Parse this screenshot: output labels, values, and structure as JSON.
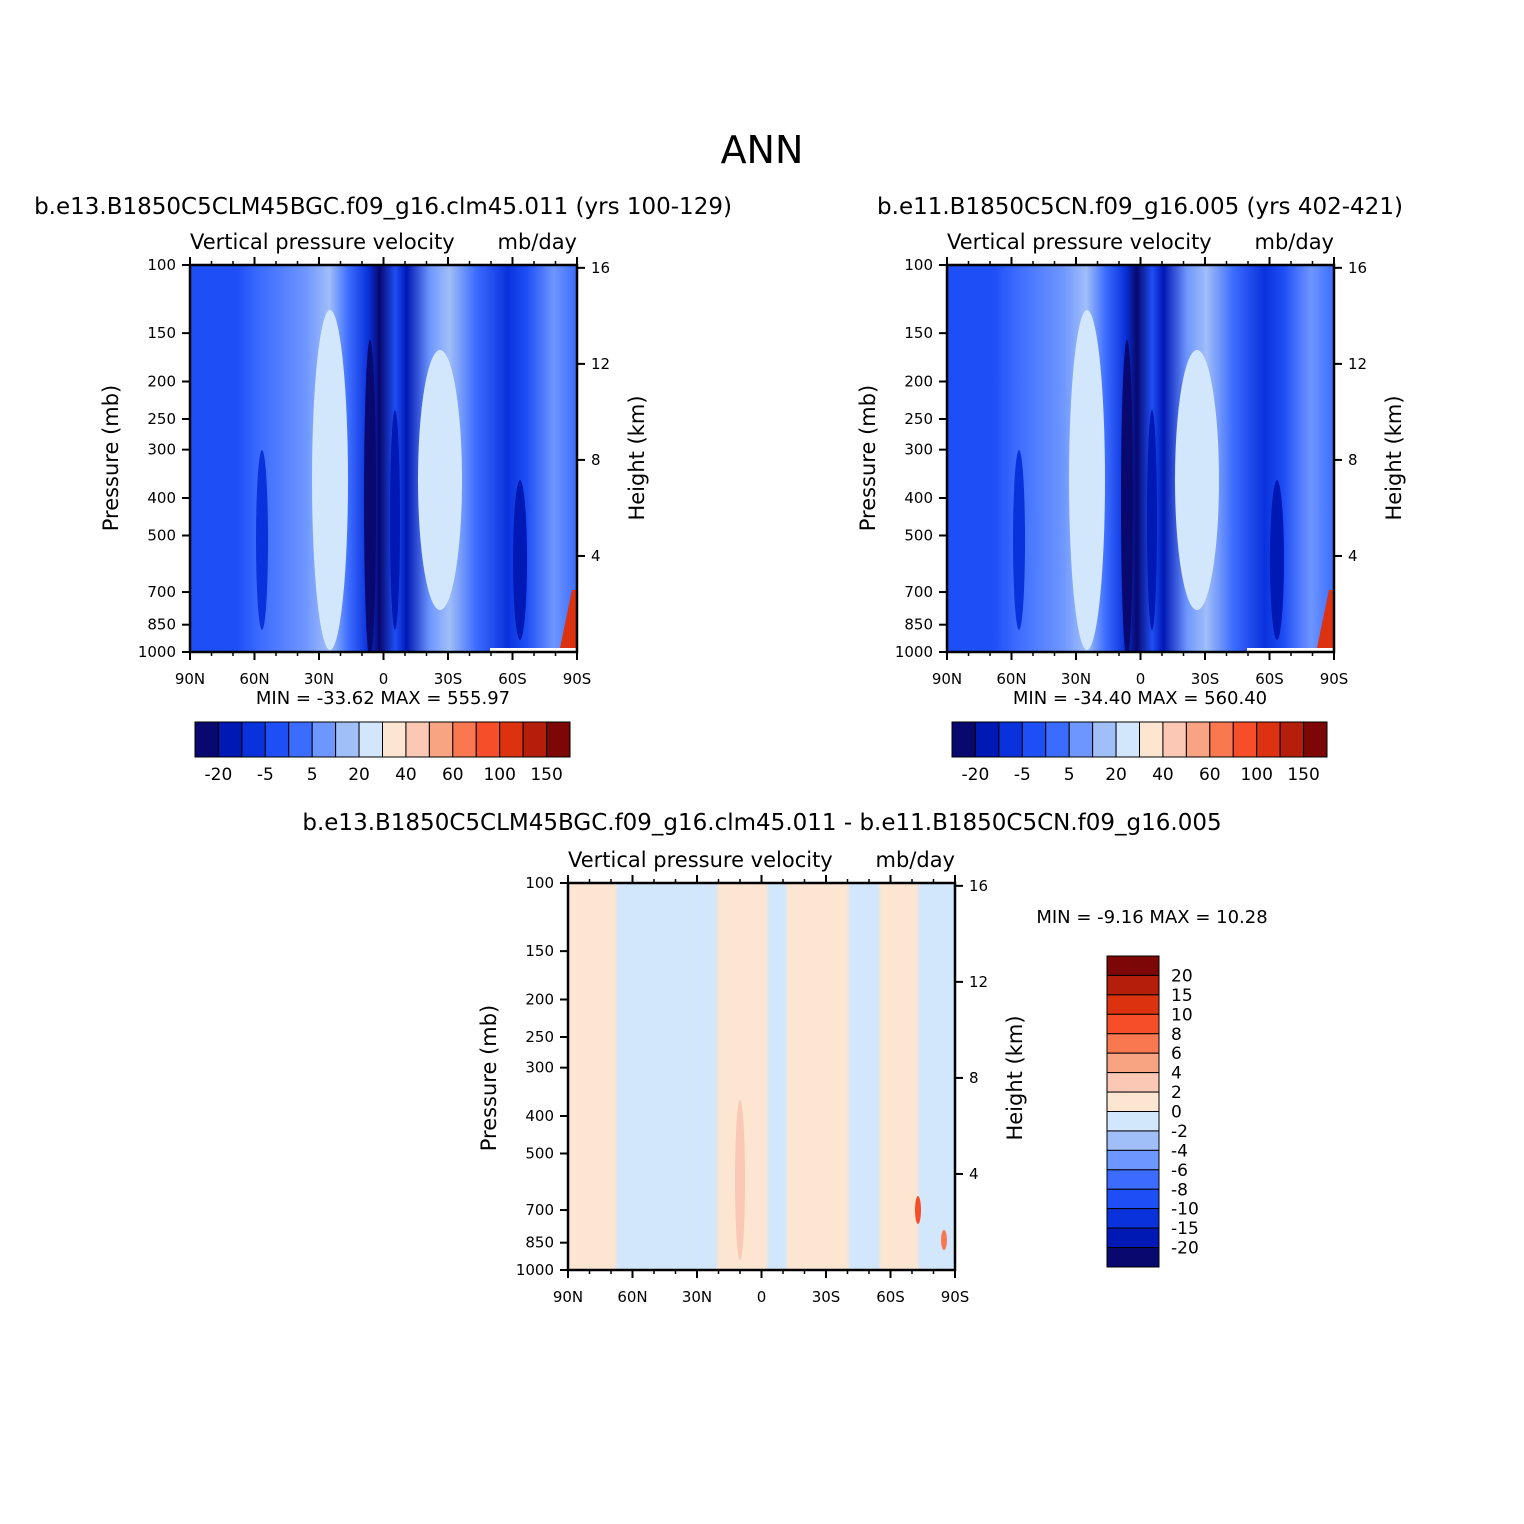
{
  "title": "ANN",
  "colors": {
    "abs_levels": [
      "#08086e",
      "#0018b4",
      "#0a32dc",
      "#1e4ef5",
      "#3c6cff",
      "#6e96ff",
      "#a0bef8",
      "#d2e6fc",
      "#fce6d2",
      "#fac8b4",
      "#f8a482",
      "#fa7850",
      "#f54e28",
      "#dc3210",
      "#b41e0a",
      "#7d0606"
    ],
    "diff_levels": [
      "#08086e",
      "#0018b4",
      "#0a32dc",
      "#1e4ef5",
      "#3c6cff",
      "#6e96ff",
      "#a0bef8",
      "#d2e6fc",
      "#fce6d2",
      "#fac8b4",
      "#f8a482",
      "#fa7850",
      "#f54e28",
      "#dc3210",
      "#b41e0a",
      "#7d0606"
    ]
  },
  "panels": [
    {
      "case": "b.e13.B1850C5CLM45BGC.f09_g16.clm45.011 (yrs 100-129)",
      "variable": "Vertical pressure velocity",
      "units": "mb/day",
      "minmax": "MIN = -33.62   MAX = 555.97"
    },
    {
      "case": "b.e11.B1850C5CN.f09_g16.005 (yrs 402-421)",
      "variable": "Vertical pressure velocity",
      "units": "mb/day",
      "minmax": "MIN = -34.40   MAX = 560.40"
    },
    {
      "case": "b.e13.B1850C5CLM45BGC.f09_g16.clm45.011 - b.e11.B1850C5CN.f09_g16.005",
      "variable": "Vertical pressure velocity",
      "units": "mb/day",
      "minmax": "MIN =   -9.16   MAX =   10.28"
    }
  ],
  "axes": {
    "ylabel_left": "Pressure (mb)",
    "ylabel_right": "Height (km)",
    "pressure_ticks": [
      "100",
      "150",
      "200",
      "250",
      "300",
      "400",
      "500",
      "700",
      "850",
      "1000"
    ],
    "height_ticks": [
      "16",
      "12",
      "8",
      "4"
    ],
    "lat_ticks": [
      "90N",
      "60N",
      "30N",
      "0",
      "30S",
      "60S",
      "90S"
    ]
  },
  "colorbars": {
    "abs_labels": [
      "-20",
      "-5",
      "5",
      "20",
      "40",
      "60",
      "100",
      "150"
    ],
    "diff_labels": [
      "20",
      "15",
      "10",
      "8",
      "6",
      "4",
      "2",
      "0",
      "-2",
      "-4",
      "-6",
      "-8",
      "-10",
      "-15",
      "-20"
    ]
  },
  "chart_data": [
    {
      "type": "heatmap",
      "title": "b.e13.B1850C5CLM45BGC.f09_g16.clm45.011 (yrs 100-129)",
      "xlabel": "",
      "ylabel": "Pressure (mb)",
      "x": [
        "90N",
        "60N",
        "30N",
        "0",
        "30S",
        "60S",
        "90S"
      ],
      "y": [
        100,
        150,
        200,
        250,
        300,
        400,
        500,
        700,
        850,
        1000
      ],
      "ylim": [
        1000,
        100
      ],
      "yscale": "log",
      "min": -33.62,
      "max": 555.97
    },
    {
      "type": "heatmap",
      "title": "b.e11.B1850C5CN.f09_g16.005 (yrs 402-421)",
      "xlabel": "",
      "ylabel": "Pressure (mb)",
      "x": [
        "90N",
        "60N",
        "30N",
        "0",
        "30S",
        "60S",
        "90S"
      ],
      "y": [
        100,
        150,
        200,
        250,
        300,
        400,
        500,
        700,
        850,
        1000
      ],
      "ylim": [
        1000,
        100
      ],
      "yscale": "log",
      "min": -34.4,
      "max": 560.4
    },
    {
      "type": "heatmap",
      "title": "b.e13.B1850C5CLM45BGC.f09_g16.clm45.011 - b.e11.B1850C5CN.f09_g16.005",
      "xlabel": "",
      "ylabel": "Pressure (mb)",
      "x": [
        "90N",
        "60N",
        "30N",
        "0",
        "30S",
        "60S",
        "90S"
      ],
      "y": [
        100,
        150,
        200,
        250,
        300,
        400,
        500,
        700,
        850,
        1000
      ],
      "ylim": [
        1000,
        100
      ],
      "yscale": "log",
      "min": -9.16,
      "max": 10.28
    }
  ]
}
